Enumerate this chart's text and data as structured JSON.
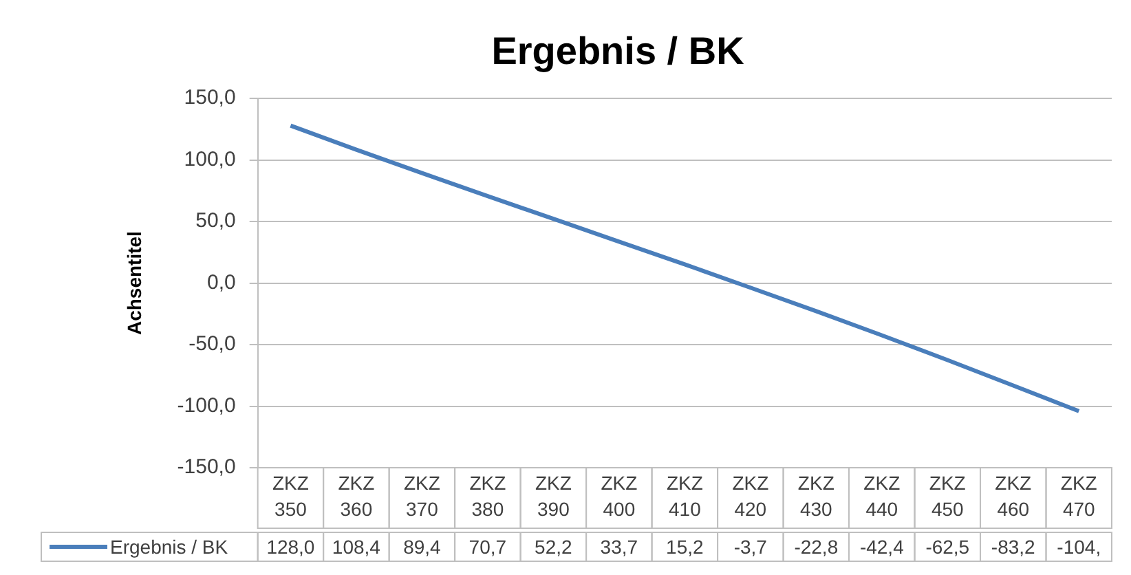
{
  "chart_data": {
    "type": "line",
    "title": "Ergebnis / BK",
    "ylabel": "Achsentitel",
    "categories": [
      "ZKZ 350",
      "ZKZ 360",
      "ZKZ 370",
      "ZKZ 380",
      "ZKZ 390",
      "ZKZ 400",
      "ZKZ 410",
      "ZKZ 420",
      "ZKZ 430",
      "ZKZ 440",
      "ZKZ 450",
      "ZKZ 460",
      "ZKZ 470"
    ],
    "series": [
      {
        "name": "Ergebnis / BK",
        "color": "#4a7ebb",
        "values": [
          128.0,
          108.4,
          89.4,
          70.7,
          52.2,
          33.7,
          15.2,
          -3.7,
          -22.8,
          -42.4,
          -62.5,
          -83.2,
          -104
        ],
        "value_labels": [
          "128,0",
          "108,4",
          "89,4",
          "70,7",
          "52,2",
          "33,7",
          "15,2",
          "-3,7",
          "-22,8",
          "-42,4",
          "-62,5",
          "-83,2",
          "-104,"
        ]
      }
    ],
    "ylim": [
      -150,
      150
    ],
    "yticks": [
      {
        "value": -150,
        "label": "-150,0"
      },
      {
        "value": -100,
        "label": "-100,0"
      },
      {
        "value": -50,
        "label": "-50,0"
      },
      {
        "value": 0,
        "label": "0,0"
      },
      {
        "value": 50,
        "label": "50,0"
      },
      {
        "value": 100,
        "label": "100,0"
      },
      {
        "value": 150,
        "label": "150,0"
      }
    ],
    "grid": "y",
    "legend": "bottom",
    "marker": "none",
    "line_style": "solid"
  }
}
